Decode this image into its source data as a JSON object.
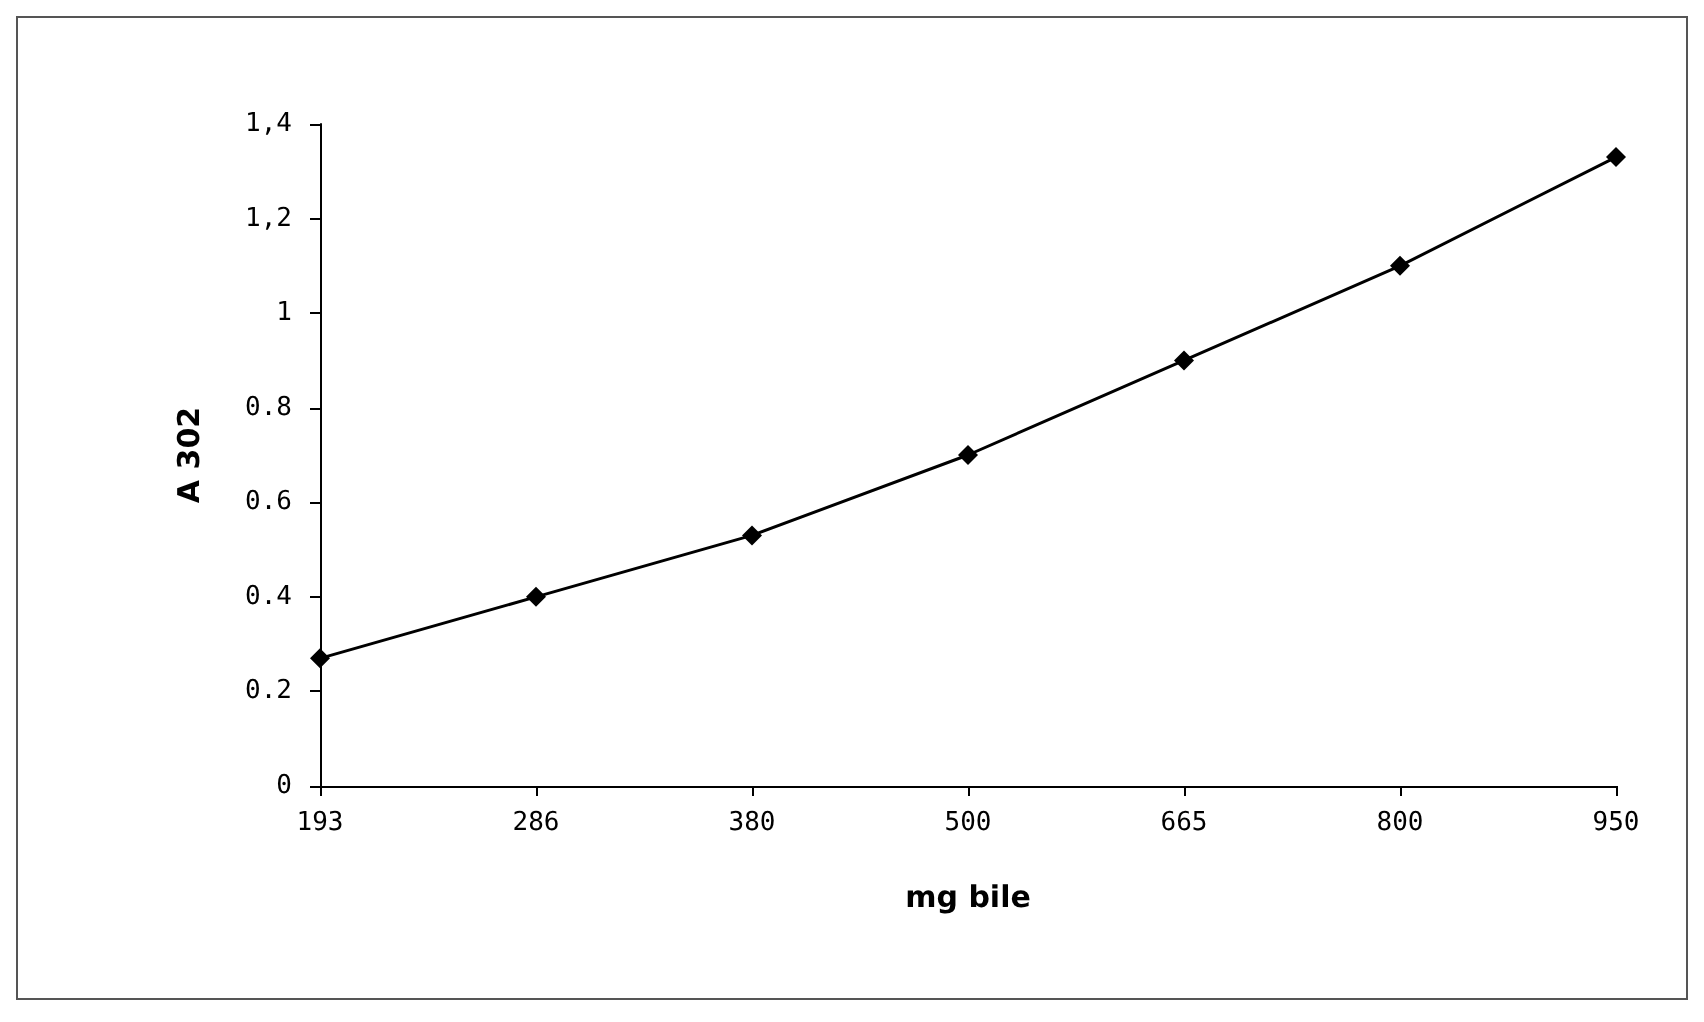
{
  "chart_data": {
    "type": "line",
    "xlabel": "mg bile",
    "ylabel": "A 302",
    "categories": [
      "193",
      "286",
      "380",
      "500",
      "665",
      "800",
      "950"
    ],
    "series": [
      {
        "color": "#000000",
        "values": [
          0.27,
          0.4,
          0.53,
          0.7,
          0.9,
          1.1,
          1.33
        ]
      }
    ],
    "ylim": [
      0,
      1.4
    ],
    "yticks": [
      0,
      0.2,
      0.4,
      0.6,
      0.8,
      1,
      {
        "value": 1.2,
        "label": "1,2"
      },
      {
        "value": 1.4,
        "label": "1,4"
      }
    ],
    "marker": "diamond",
    "line_style": "solid",
    "grid": false
  }
}
